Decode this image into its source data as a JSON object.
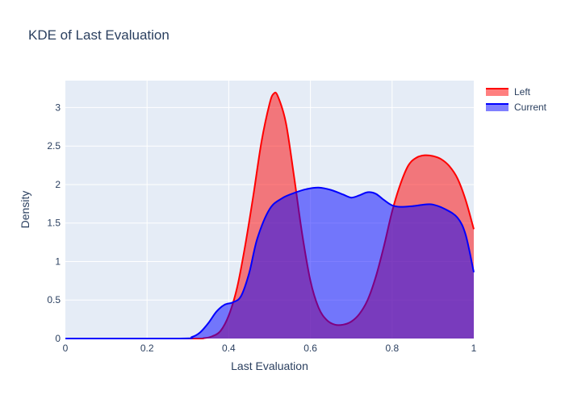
{
  "chart_data": {
    "type": "area",
    "title": "KDE of Last Evaluation",
    "xlabel": "Last Evaluation",
    "ylabel": "Density",
    "xlim": [
      0,
      1
    ],
    "ylim": [
      0,
      3.35
    ],
    "x_ticks": [
      "0",
      "0.2",
      "0.4",
      "0.6",
      "0.8",
      "1"
    ],
    "y_ticks": [
      "0",
      "0.5",
      "1",
      "1.5",
      "2",
      "2.5",
      "3"
    ],
    "grid": true,
    "legend_position": "top-right",
    "series": [
      {
        "name": "Left",
        "color": "#ff0000",
        "points": [
          [
            0.0,
            0.0
          ],
          [
            0.3,
            0.0
          ],
          [
            0.34,
            0.005
          ],
          [
            0.36,
            0.03
          ],
          [
            0.38,
            0.1
          ],
          [
            0.4,
            0.3
          ],
          [
            0.42,
            0.65
          ],
          [
            0.44,
            1.2
          ],
          [
            0.46,
            1.85
          ],
          [
            0.48,
            2.55
          ],
          [
            0.5,
            3.05
          ],
          [
            0.51,
            3.18
          ],
          [
            0.52,
            3.15
          ],
          [
            0.54,
            2.8
          ],
          [
            0.56,
            2.1
          ],
          [
            0.58,
            1.35
          ],
          [
            0.6,
            0.75
          ],
          [
            0.62,
            0.4
          ],
          [
            0.64,
            0.24
          ],
          [
            0.66,
            0.18
          ],
          [
            0.68,
            0.18
          ],
          [
            0.7,
            0.22
          ],
          [
            0.72,
            0.32
          ],
          [
            0.74,
            0.5
          ],
          [
            0.76,
            0.8
          ],
          [
            0.78,
            1.2
          ],
          [
            0.8,
            1.65
          ],
          [
            0.82,
            2.0
          ],
          [
            0.84,
            2.25
          ],
          [
            0.86,
            2.35
          ],
          [
            0.88,
            2.38
          ],
          [
            0.9,
            2.37
          ],
          [
            0.92,
            2.33
          ],
          [
            0.94,
            2.24
          ],
          [
            0.96,
            2.08
          ],
          [
            0.98,
            1.8
          ],
          [
            1.0,
            1.42
          ]
        ]
      },
      {
        "name": "Current",
        "color": "#0000ff",
        "points": [
          [
            0.0,
            0.0
          ],
          [
            0.28,
            0.0
          ],
          [
            0.31,
            0.02
          ],
          [
            0.33,
            0.08
          ],
          [
            0.35,
            0.2
          ],
          [
            0.37,
            0.35
          ],
          [
            0.39,
            0.44
          ],
          [
            0.41,
            0.47
          ],
          [
            0.43,
            0.55
          ],
          [
            0.45,
            0.85
          ],
          [
            0.47,
            1.3
          ],
          [
            0.5,
            1.68
          ],
          [
            0.53,
            1.82
          ],
          [
            0.56,
            1.89
          ],
          [
            0.59,
            1.94
          ],
          [
            0.62,
            1.96
          ],
          [
            0.65,
            1.93
          ],
          [
            0.68,
            1.87
          ],
          [
            0.7,
            1.83
          ],
          [
            0.72,
            1.86
          ],
          [
            0.74,
            1.9
          ],
          [
            0.76,
            1.88
          ],
          [
            0.78,
            1.8
          ],
          [
            0.8,
            1.73
          ],
          [
            0.82,
            1.71
          ],
          [
            0.85,
            1.72
          ],
          [
            0.88,
            1.74
          ],
          [
            0.9,
            1.74
          ],
          [
            0.93,
            1.68
          ],
          [
            0.96,
            1.57
          ],
          [
            0.98,
            1.35
          ],
          [
            1.0,
            0.86
          ]
        ]
      }
    ]
  }
}
